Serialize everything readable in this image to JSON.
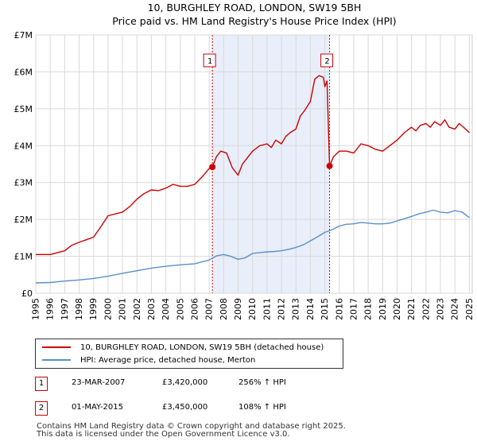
{
  "chart_data": {
    "type": "line",
    "title": "10, BURGHLEY ROAD, LONDON, SW19 5BH",
    "subtitle": "Price paid vs. HM Land Registry's House Price Index (HPI)",
    "xlim": [
      1995,
      2025.2
    ],
    "ylim": [
      0,
      7000000
    ],
    "x_ticks": [
      "1995",
      "1996",
      "1997",
      "1998",
      "1999",
      "2000",
      "2001",
      "2002",
      "2003",
      "2004",
      "2005",
      "2006",
      "2007",
      "2008",
      "2009",
      "2010",
      "2011",
      "2012",
      "2013",
      "2014",
      "2015",
      "2016",
      "2017",
      "2018",
      "2019",
      "2020",
      "2021",
      "2022",
      "2023",
      "2024",
      "2025"
    ],
    "y_ticks": [
      {
        "value": 0,
        "label": "£0"
      },
      {
        "value": 1000000,
        "label": "£1M"
      },
      {
        "value": 2000000,
        "label": "£2M"
      },
      {
        "value": 3000000,
        "label": "£3M"
      },
      {
        "value": 4000000,
        "label": "£4M"
      },
      {
        "value": 5000000,
        "label": "£5M"
      },
      {
        "value": 6000000,
        "label": "£6M"
      },
      {
        "value": 7000000,
        "label": "£7M"
      }
    ],
    "shaded_region": [
      2007.22,
      2015.33
    ],
    "series": [
      {
        "name": "10, BURGHLEY ROAD, LONDON, SW19 5BH (detached house)",
        "color": "#cc0000",
        "x": [
          1995,
          1996,
          1997,
          1997.5,
          1998,
          1998.5,
          1999,
          1999.5,
          2000,
          2000.5,
          2001,
          2001.5,
          2002,
          2002.5,
          2003,
          2003.5,
          2004,
          2004.5,
          2005,
          2005.5,
          2006,
          2006.5,
          2007,
          2007.22,
          2007.5,
          2007.8,
          2008.2,
          2008.6,
          2009,
          2009.3,
          2009.7,
          2010,
          2010.5,
          2011,
          2011.3,
          2011.6,
          2012,
          2012.3,
          2012.6,
          2013,
          2013.3,
          2013.6,
          2014,
          2014.3,
          2014.6,
          2014.9,
          2015,
          2015.15,
          2015.33,
          2015.6,
          2016,
          2016.5,
          2017,
          2017.5,
          2018,
          2018.5,
          2019,
          2019.5,
          2020,
          2020.5,
          2021,
          2021.3,
          2021.6,
          2022,
          2022.3,
          2022.6,
          2023,
          2023.3,
          2023.6,
          2024,
          2024.3,
          2024.6,
          2025
        ],
        "y": [
          1050000,
          1050000,
          1150000,
          1300000,
          1380000,
          1450000,
          1520000,
          1800000,
          2100000,
          2150000,
          2200000,
          2350000,
          2550000,
          2700000,
          2800000,
          2780000,
          2850000,
          2950000,
          2900000,
          2900000,
          2950000,
          3150000,
          3380000,
          3420000,
          3700000,
          3850000,
          3800000,
          3400000,
          3200000,
          3500000,
          3700000,
          3850000,
          4000000,
          4050000,
          3950000,
          4150000,
          4050000,
          4250000,
          4350000,
          4450000,
          4800000,
          4950000,
          5200000,
          5800000,
          5900000,
          5850000,
          5600000,
          5750000,
          3450000,
          3700000,
          3850000,
          3850000,
          3800000,
          4050000,
          4000000,
          3900000,
          3850000,
          4000000,
          4150000,
          4350000,
          4500000,
          4400000,
          4550000,
          4600000,
          4500000,
          4650000,
          4550000,
          4700000,
          4500000,
          4450000,
          4600000,
          4500000,
          4350000
        ]
      },
      {
        "name": "HPI: Average price, detached house, Merton",
        "color": "#5b8fc9",
        "x": [
          1995,
          1996,
          1997,
          1998,
          1999,
          2000,
          2001,
          2002,
          2003,
          2004,
          2005,
          2006,
          2007,
          2007.5,
          2008,
          2008.5,
          2009,
          2009.5,
          2010,
          2010.5,
          2011,
          2011.5,
          2012,
          2012.5,
          2013,
          2013.5,
          2014,
          2014.5,
          2015,
          2015.5,
          2016,
          2016.5,
          2017,
          2017.5,
          2018,
          2018.5,
          2019,
          2019.5,
          2020,
          2020.5,
          2021,
          2021.5,
          2022,
          2022.5,
          2023,
          2023.5,
          2024,
          2024.5,
          2025
        ],
        "y": [
          280000,
          290000,
          330000,
          360000,
          400000,
          460000,
          540000,
          610000,
          680000,
          730000,
          770000,
          800000,
          900000,
          1010000,
          1050000,
          1000000,
          920000,
          960000,
          1080000,
          1100000,
          1120000,
          1130000,
          1150000,
          1190000,
          1240000,
          1310000,
          1420000,
          1530000,
          1650000,
          1720000,
          1820000,
          1870000,
          1880000,
          1920000,
          1900000,
          1880000,
          1880000,
          1900000,
          1960000,
          2020000,
          2080000,
          2150000,
          2200000,
          2250000,
          2200000,
          2180000,
          2240000,
          2200000,
          2050000
        ]
      }
    ],
    "annotations": [
      {
        "label": "1",
        "x": 2007.22,
        "y": 3420000
      },
      {
        "label": "2",
        "x": 2015.33,
        "y": 3450000
      }
    ]
  },
  "legend": {
    "red_label": "10, BURGHLEY ROAD, LONDON, SW19 5BH (detached house)",
    "blue_label": "HPI: Average price, detached house, Merton",
    "red_color": "#cc0000",
    "blue_color": "#5b8fc9"
  },
  "transactions": [
    {
      "num": "1",
      "date": "23-MAR-2007",
      "price": "£3,420,000",
      "hpi": "256% ↑ HPI"
    },
    {
      "num": "2",
      "date": "01-MAY-2015",
      "price": "£3,450,000",
      "hpi": "108% ↑ HPI"
    }
  ],
  "footer": {
    "line1": "Contains HM Land Registry data © Crown copyright and database right 2025.",
    "line2": "This data is licensed under the Open Government Licence v3.0."
  }
}
